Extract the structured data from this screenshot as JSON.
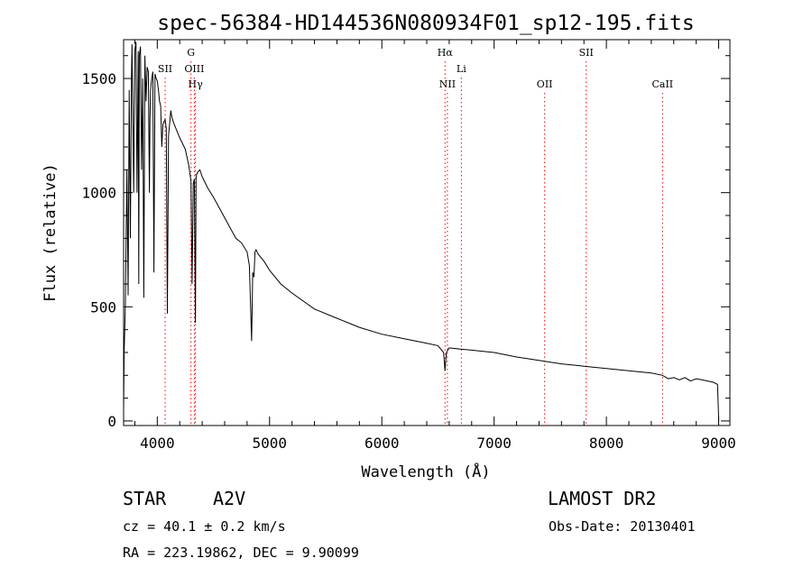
{
  "title": "spec-56384-HD144536N080934F01_sp12-195.fits",
  "chart_data": {
    "type": "line",
    "xlabel": "Wavelength (Å)",
    "ylabel": "Flux (relative)",
    "xlim": [
      3700,
      9100
    ],
    "ylim": [
      -20,
      1670
    ],
    "x_ticks": [
      4000,
      5000,
      6000,
      7000,
      8000,
      9000
    ],
    "y_ticks": [
      0,
      500,
      1000,
      1500
    ],
    "grid": false,
    "line_color": "#000000",
    "marker_color": "#ff0000",
    "series": [
      {
        "x": [
          3700,
          3705,
          3715,
          3730,
          3740,
          3750,
          3760,
          3770,
          3775,
          3790,
          3800,
          3810,
          3820,
          3830,
          3835,
          3840,
          3850,
          3860,
          3870,
          3880,
          3890,
          3900,
          3910,
          3920,
          3930,
          3935,
          3940,
          3950,
          3960,
          3970,
          3980,
          3990,
          4000,
          4010,
          4020,
          4030,
          4040,
          4050,
          4060,
          4070,
          4080,
          4090,
          4100,
          4110,
          4120,
          4130,
          4150,
          4200,
          4250,
          4280,
          4300,
          4310,
          4320,
          4330,
          4340,
          4345,
          4350,
          4360,
          4380,
          4400,
          4450,
          4500,
          4600,
          4700,
          4750,
          4800,
          4820,
          4840,
          4850,
          4861,
          4870,
          4880,
          4900,
          4950,
          5000,
          5100,
          5200,
          5400,
          5600,
          5800,
          6000,
          6200,
          6400,
          6500,
          6550,
          6562,
          6575,
          6600,
          6700,
          6800,
          7000,
          7200,
          7400,
          7600,
          7800,
          8000,
          8200,
          8400,
          8500,
          8550,
          8600,
          8650,
          8700,
          8750,
          8800,
          8850,
          8900,
          8950,
          8990,
          9000
        ],
        "y": [
          50,
          300,
          500,
          1100,
          550,
          1450,
          800,
          1500,
          1650,
          1000,
          1620,
          1660,
          1000,
          1620,
          600,
          1600,
          1640,
          1100,
          1500,
          540,
          1600,
          1400,
          1550,
          1530,
          1000,
          1320,
          1450,
          1500,
          1530,
          650,
          1520,
          1500,
          1490,
          1450,
          1400,
          1380,
          1200,
          1300,
          1310,
          1320,
          1280,
          470,
          1250,
          1300,
          1360,
          1330,
          1300,
          1240,
          1190,
          1120,
          1050,
          600,
          1040,
          1060,
          430,
          1060,
          1080,
          1090,
          1100,
          1070,
          1020,
          980,
          890,
          800,
          780,
          740,
          680,
          350,
          650,
          630,
          740,
          750,
          730,
          700,
          660,
          600,
          560,
          490,
          450,
          410,
          380,
          360,
          340,
          330,
          300,
          220,
          300,
          320,
          315,
          310,
          300,
          280,
          265,
          250,
          240,
          230,
          220,
          210,
          200,
          185,
          190,
          180,
          190,
          175,
          185,
          180,
          175,
          170,
          160,
          0
        ]
      }
    ],
    "annotations": [
      {
        "label": "SII",
        "x": 4070,
        "tier": 2
      },
      {
        "label": "G",
        "x": 4300,
        "tier": 1
      },
      {
        "label": "OIII",
        "x": 4330,
        "tier": 2
      },
      {
        "label": "Hγ",
        "x": 4340,
        "tier": 3
      },
      {
        "label": "Hα",
        "x": 6563,
        "tier": 1
      },
      {
        "label": "Li",
        "x": 6708,
        "tier": 2
      },
      {
        "label": "NII",
        "x": 6584,
        "tier": 3
      },
      {
        "label": "OII",
        "x": 7450,
        "tier": 3
      },
      {
        "label": "SII",
        "x": 7820,
        "tier": 1
      },
      {
        "label": "CaII",
        "x": 8500,
        "tier": 3
      }
    ]
  },
  "footer": {
    "object_type": "STAR",
    "subclass": "A2V",
    "redshift": "cz = 40.1 ± 0.2 km/s",
    "coords": "RA = 223.19862, DEC =   9.90099",
    "survey": "LAMOST DR2",
    "obs_date": "Obs-Date: 20130401"
  }
}
